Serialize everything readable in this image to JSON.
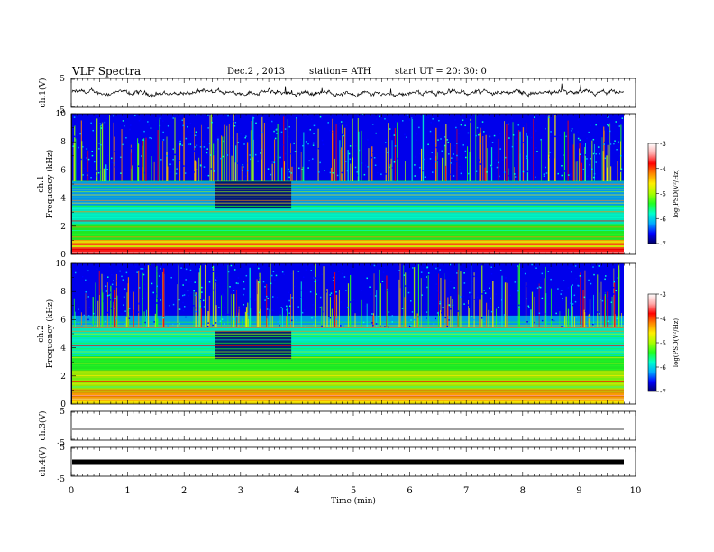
{
  "header": {
    "title": "VLF  Spectra",
    "date": "Dec.2  , 2013",
    "station": "station= ATH",
    "start": "start  UT =   20: 30: 0"
  },
  "chart_data": [
    {
      "type": "line",
      "name": "ch1-waveform",
      "ylabel": "ch.1(V)",
      "yticks": [
        "5",
        "-5"
      ],
      "ylim": [
        -5,
        5
      ],
      "xlim": [
        0,
        10
      ],
      "data_end_min": 9.8
    },
    {
      "type": "heatmap",
      "name": "ch1-spectrogram",
      "ylabel": "ch.1\nFrequency (kHz)",
      "ylabel_channel": "ch.1",
      "ylabel_axis": "Frequency  (kHz)",
      "ylim": [
        0,
        10
      ],
      "yticks": [
        "0",
        "2",
        "4",
        "6",
        "8",
        "10"
      ],
      "xlim": [
        0,
        10
      ],
      "colorbar": {
        "label": "log(PSD(V²/Hz)",
        "range": [
          -7,
          -3
        ],
        "ticks": [
          "-3",
          "-4",
          "-5",
          "-6",
          "-7"
        ],
        "colors": [
          "#000066",
          "#0000ff",
          "#00aaff",
          "#00ffcc",
          "#22ff22",
          "#aaff00",
          "#ffee00",
          "#ff8800",
          "#ff0000",
          "#ffaaaa",
          "#ffffff"
        ]
      }
    },
    {
      "type": "heatmap",
      "name": "ch2-spectrogram",
      "ylabel_channel": "ch.2",
      "ylabel_axis": "Frequency  (kHz)",
      "ylim": [
        0,
        10
      ],
      "yticks": [
        "0",
        "2",
        "4",
        "6",
        "8",
        "10"
      ],
      "xlim": [
        0,
        10
      ],
      "colorbar": {
        "label": "log(PSD(V²/Hz)",
        "range": [
          -7,
          -3
        ],
        "ticks": [
          "-3",
          "-4",
          "-5",
          "-6",
          "-7"
        ]
      }
    },
    {
      "type": "line",
      "name": "ch3-waveform",
      "ylabel": "ch.3(V)",
      "yticks": [
        "5",
        "-5"
      ],
      "ylim": [
        -5,
        5
      ],
      "xlim": [
        0,
        10
      ]
    },
    {
      "type": "line",
      "name": "ch4-waveform",
      "ylabel": "ch.4(V)",
      "yticks": [
        "5",
        "-5"
      ],
      "ylim": [
        -5,
        5
      ],
      "xlim": [
        0,
        10
      ]
    }
  ],
  "xaxis": {
    "label": "Time  (min)",
    "ticks": [
      "0",
      "1",
      "2",
      "3",
      "4",
      "5",
      "6",
      "7",
      "8",
      "9",
      "10"
    ]
  }
}
